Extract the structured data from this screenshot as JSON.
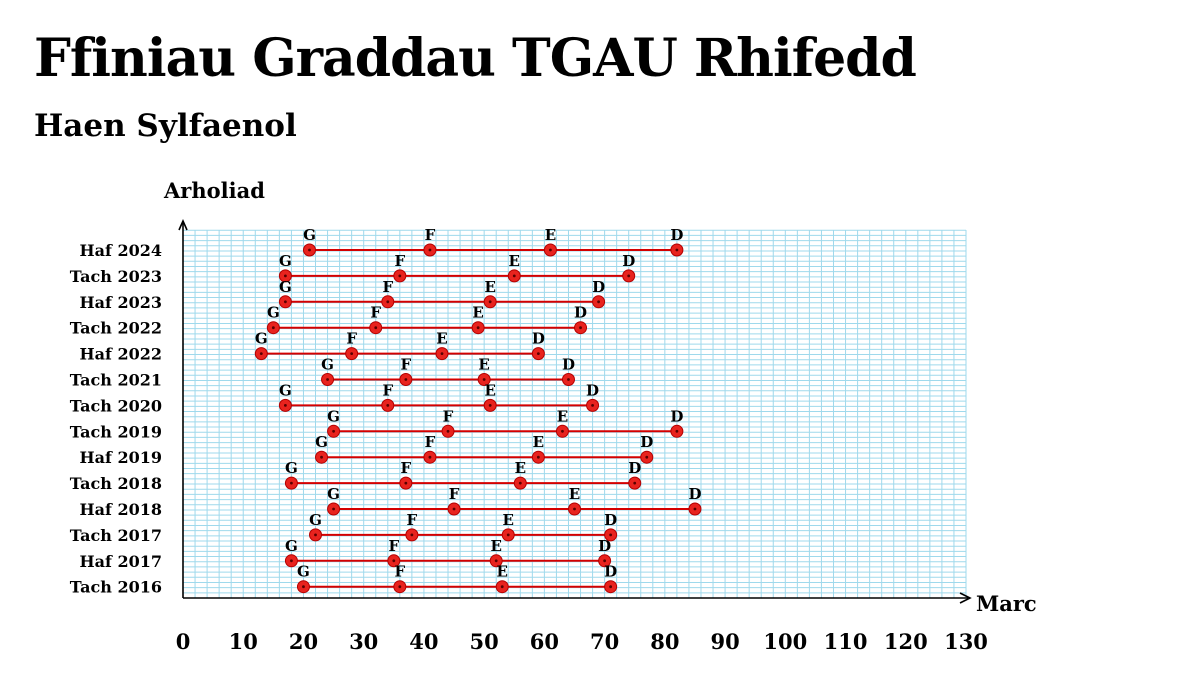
{
  "title": "Ffiniau Graddau TGAU Rhifedd",
  "subtitle": "Haen Sylfaenol",
  "chart_data": {
    "type": "scatter",
    "xlabel": "Marc",
    "ylabel": "Arholiad",
    "xlim": [
      0,
      130
    ],
    "x_ticks": [
      0,
      10,
      20,
      30,
      40,
      50,
      60,
      70,
      80,
      90,
      100,
      110,
      120,
      130
    ],
    "grid": true,
    "grid_minor_step": 2,
    "grade_labels": [
      "G",
      "F",
      "E",
      "D"
    ],
    "colors": {
      "line": "#d40000",
      "marker": "#e8231e",
      "grid": "#9fd9ec",
      "axis": "#000000"
    },
    "exams": [
      {
        "exam": "Haf 2024",
        "G": 21,
        "F": 41,
        "E": 61,
        "D": 82
      },
      {
        "exam": "Tach 2023",
        "G": 17,
        "F": 36,
        "E": 55,
        "D": 74
      },
      {
        "exam": "Haf 2023",
        "G": 17,
        "F": 34,
        "E": 51,
        "D": 69
      },
      {
        "exam": "Tach 2022",
        "G": 15,
        "F": 32,
        "E": 49,
        "D": 66
      },
      {
        "exam": "Haf 2022",
        "G": 13,
        "F": 28,
        "E": 43,
        "D": 59
      },
      {
        "exam": "Tach 2021",
        "G": 24,
        "F": 37,
        "E": 50,
        "D": 64
      },
      {
        "exam": "Tach 2020",
        "G": 17,
        "F": 34,
        "E": 51,
        "D": 68
      },
      {
        "exam": "Tach 2019",
        "G": 25,
        "F": 44,
        "E": 63,
        "D": 82
      },
      {
        "exam": "Haf 2019",
        "G": 23,
        "F": 41,
        "E": 59,
        "D": 77
      },
      {
        "exam": "Tach 2018",
        "G": 18,
        "F": 37,
        "E": 56,
        "D": 75
      },
      {
        "exam": "Haf 2018",
        "G": 25,
        "F": 45,
        "E": 65,
        "D": 85
      },
      {
        "exam": "Tach 2017",
        "G": 22,
        "F": 38,
        "E": 54,
        "D": 71
      },
      {
        "exam": "Haf 2017",
        "G": 18,
        "F": 35,
        "E": 52,
        "D": 70
      },
      {
        "exam": "Tach 2016",
        "G": 20,
        "F": 36,
        "E": 53,
        "D": 71
      }
    ]
  }
}
